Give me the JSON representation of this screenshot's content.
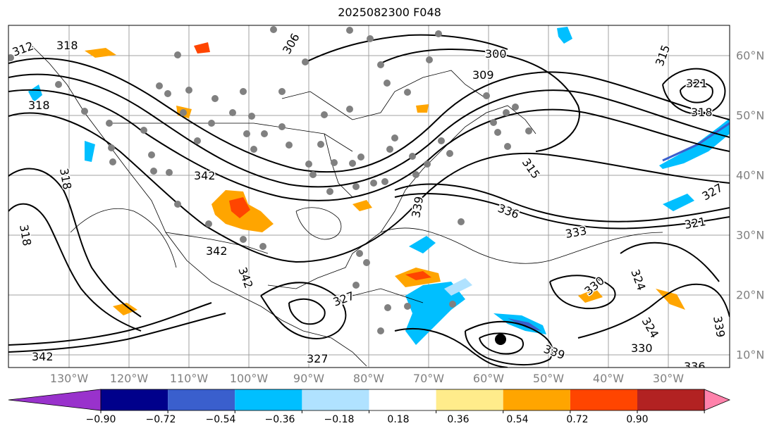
{
  "title": "2025082300 F048",
  "map": {
    "lon_labels": [
      "130°W",
      "120°W",
      "110°W",
      "100°W",
      "90°W",
      "80°W",
      "70°W",
      "60°W",
      "50°W",
      "40°W",
      "30°W"
    ],
    "lat_labels": [
      "60°N",
      "50°N",
      "40°N",
      "30°N",
      "20°N",
      "10°N"
    ],
    "contour_labels": [
      "312",
      "318",
      "342",
      "318",
      "318",
      "318",
      "306",
      "300",
      "309",
      "321",
      "318",
      "315",
      "315",
      "339",
      "336",
      "333",
      "327",
      "321",
      "342",
      "342",
      "327",
      "324",
      "330",
      "330",
      "324",
      "339",
      "336",
      "342",
      "339",
      "327"
    ]
  },
  "colorbar": {
    "tick_labels": [
      "−0.90",
      "−0.72",
      "−0.54",
      "−0.36",
      "−0.18",
      "0.18",
      "0.36",
      "0.54",
      "0.72",
      "0.90"
    ],
    "colors": [
      "#9932cc",
      "#00008b",
      "#3a5fcd",
      "#00bfff",
      "#b0e2ff",
      "#ffffff",
      "#ffec8b",
      "#ffa500",
      "#ff4500",
      "#b22222",
      "#ff82ab"
    ]
  }
}
